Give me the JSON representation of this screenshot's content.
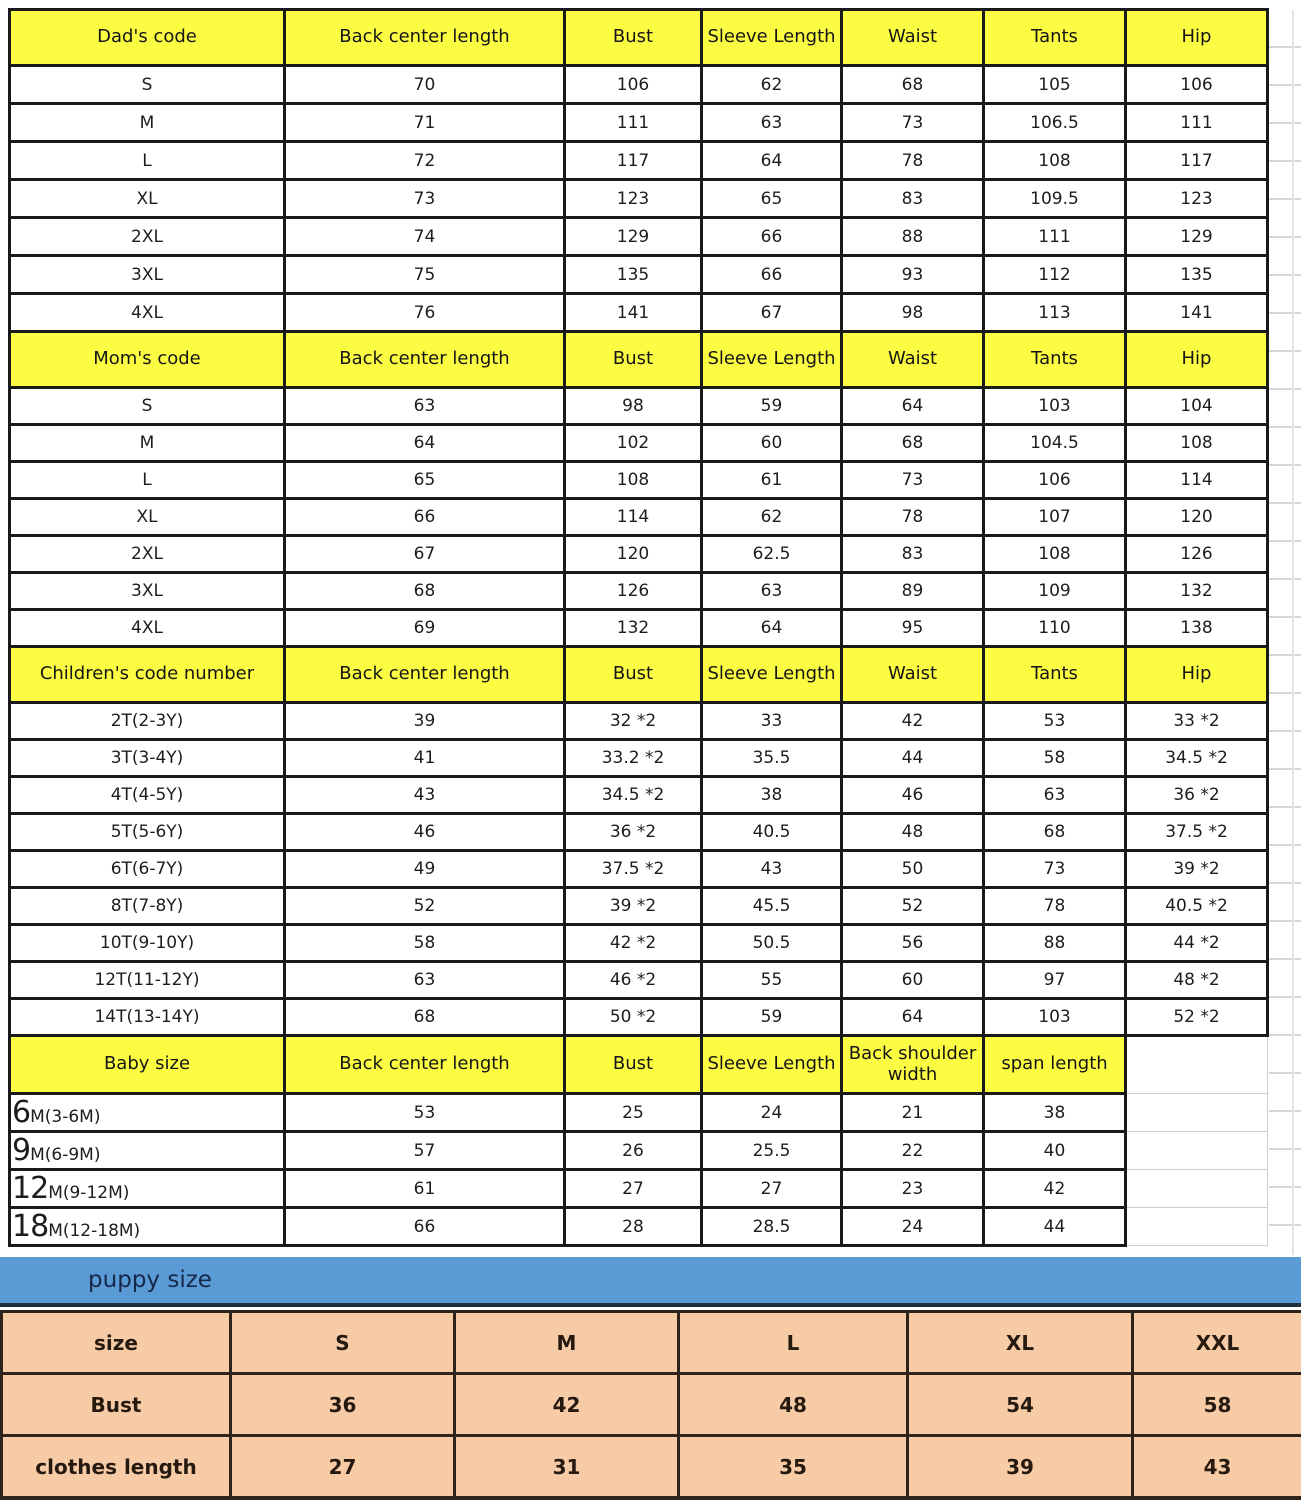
{
  "colors": {
    "header_yellow": "#fcfd42",
    "band_blue": "#5b9bd5",
    "puppy_salmon": "#f7cba6",
    "text_blue": "#3b7dc8",
    "text_navy": "#33496e",
    "text_red": "#ec2024",
    "text_black": "#1d1d1d"
  },
  "main_sections": [
    {
      "name": "dad",
      "header": [
        "Dad's code",
        "Back center length",
        "Bust",
        "Sleeve Length",
        "Waist",
        "Tants",
        "Hip"
      ],
      "rows": [
        {
          "c": "k",
          "cells": [
            "S",
            "70",
            "106",
            "62",
            "68",
            "105",
            "106"
          ]
        },
        {
          "c": "k",
          "cells": [
            "M",
            "71",
            "111",
            "63",
            "73",
            "106.5",
            "111"
          ]
        },
        {
          "c": "k",
          "cells": [
            "L",
            "72",
            "117",
            "64",
            "78",
            "108",
            "117"
          ]
        },
        {
          "c": "k",
          "cells": [
            "XL",
            "73",
            "123",
            "65",
            "83",
            "109.5",
            "123"
          ]
        },
        {
          "c": "k",
          "cells": [
            "2XL",
            "74",
            "129",
            "66",
            "88",
            "111",
            "129"
          ]
        },
        {
          "c": "k",
          "cells": [
            "3XL",
            "75",
            "135",
            "66",
            "93",
            "112",
            "135"
          ]
        },
        {
          "c": "k",
          "cells": [
            "4XL",
            "76",
            "141",
            "67",
            "98",
            "113",
            "141"
          ]
        }
      ]
    },
    {
      "name": "mom",
      "header": [
        "Mom's code",
        "Back center length",
        "Bust",
        "Sleeve Length",
        "Waist",
        "Tants",
        "Hip"
      ],
      "rows": [
        {
          "c": "k",
          "cells": [
            "S",
            "63",
            "98",
            "59",
            "64",
            "103",
            "104"
          ]
        },
        {
          "c": "k",
          "cells": [
            "M",
            "64",
            "102",
            "60",
            "68",
            "104.5",
            "108"
          ]
        },
        {
          "c": "k",
          "cells": [
            "L",
            "65",
            "108",
            "61",
            "73",
            "106",
            "114"
          ]
        },
        {
          "c": "k",
          "cells": [
            "XL",
            "66",
            "114",
            "62",
            "78",
            "107",
            "120"
          ]
        },
        {
          "c": "k",
          "cells": [
            "2XL",
            "67",
            "120",
            "62.5",
            "83",
            "108",
            "126"
          ]
        },
        {
          "c": "k",
          "cells": [
            "3XL",
            "68",
            "126",
            "63",
            "89",
            "109",
            "132"
          ]
        },
        {
          "c": "k",
          "cells": [
            "4XL",
            "69",
            "132",
            "64",
            "95",
            "110",
            "138"
          ]
        }
      ]
    },
    {
      "name": "children",
      "last_black": true,
      "header": [
        "Children's code number",
        "Back center length",
        "Bust",
        "Sleeve Length",
        "Waist",
        "Tants",
        "Hip"
      ],
      "rows": [
        {
          "c": "b",
          "cells": [
            "2T(2-3Y)",
            "39",
            "32 *2",
            "33",
            "42",
            "53",
            "33 *2"
          ]
        },
        {
          "c": "b",
          "cells": [
            "3T(3-4Y)",
            "41",
            "33.2 *2",
            "35.5",
            "44",
            "58",
            "34.5 *2"
          ]
        },
        {
          "c": "b",
          "cells": [
            "4T(4-5Y)",
            "43",
            "34.5 *2",
            "38",
            "46",
            "63",
            "36 *2"
          ]
        },
        {
          "c": "b",
          "cells": [
            "5T(5-6Y)",
            "46",
            "36 *2",
            "40.5",
            "48",
            "68",
            "37.5 *2"
          ]
        },
        {
          "c": "b",
          "cells": [
            "6T(6-7Y)",
            "49",
            "37.5 *2",
            "43",
            "50",
            "73",
            "39 *2"
          ]
        },
        {
          "c": "n",
          "cells": [
            "8T(7-8Y)",
            "52",
            "39 *2",
            "45.5",
            "52",
            "78",
            "40.5 *2"
          ]
        },
        {
          "c": "n",
          "cells": [
            "10T(9-10Y)",
            "58",
            "42 *2",
            "50.5",
            "56",
            "88",
            "44 *2"
          ]
        },
        {
          "c": "r",
          "cells": [
            "12T(11-12Y)",
            "63",
            "46 *2",
            "55",
            "60",
            "97",
            "48 *2"
          ]
        },
        {
          "c": "r",
          "cells": [
            "14T(13-14Y)",
            "68",
            "50 *2",
            "59",
            "64",
            "103",
            "52 *2"
          ]
        }
      ]
    },
    {
      "name": "baby",
      "ghost_last": true,
      "header": [
        "Baby size",
        "Back center length",
        "Bust",
        "Sleeve Length",
        "Back shoulder width",
        "span length",
        ""
      ],
      "rows": [
        {
          "c": "k",
          "big": "6",
          "cells": [
            "M(3-6M)",
            "53",
            "25",
            "24",
            "21",
            "38",
            ""
          ]
        },
        {
          "c": "k",
          "big": "9",
          "cells": [
            "M(6-9M)",
            "57",
            "26",
            "25.5",
            "22",
            "40",
            ""
          ]
        },
        {
          "c": "k",
          "big": "12",
          "cells": [
            "M(9-12M)",
            "61",
            "27",
            "27",
            "23",
            "42",
            ""
          ]
        },
        {
          "c": "k",
          "big": "18",
          "cells": [
            "M(12-18M)",
            "66",
            "28",
            "28.5",
            "24",
            "44",
            ""
          ]
        }
      ]
    }
  ],
  "puppy": {
    "band_label": "puppy size",
    "rows": [
      [
        "size",
        "S",
        "M",
        "L",
        "XL",
        "XXL"
      ],
      [
        "Bust",
        "36",
        "42",
        "48",
        "54",
        "58"
      ],
      [
        "clothes length",
        "27",
        "31",
        "35",
        "39",
        "43"
      ]
    ]
  }
}
